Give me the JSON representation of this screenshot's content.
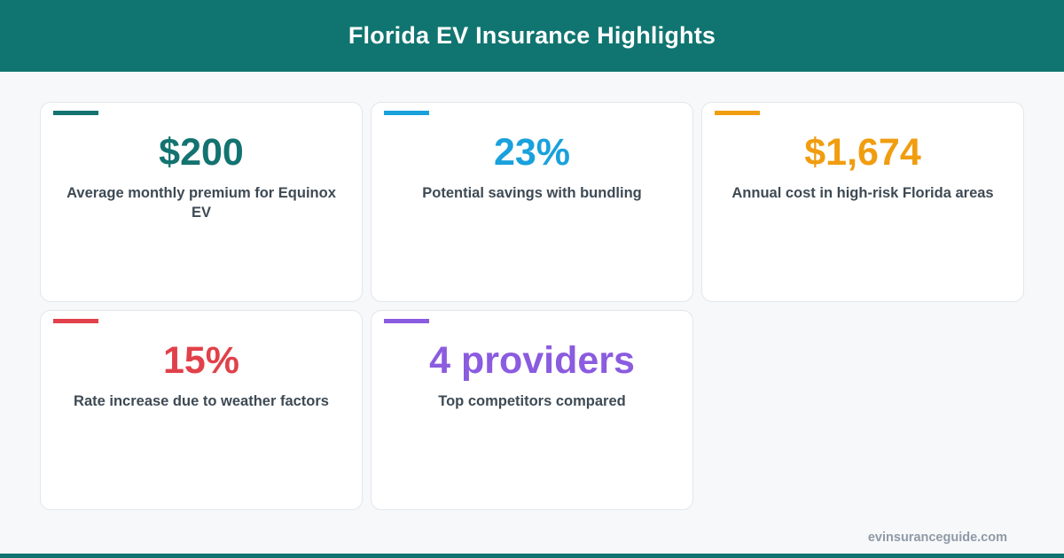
{
  "header": {
    "title": "Florida EV Insurance Highlights"
  },
  "cards": [
    {
      "value": "$200",
      "label": "Average monthly premium for Equinox EV",
      "color": "#137370"
    },
    {
      "value": "23%",
      "label": "Potential savings with bundling",
      "color": "#19a1dc"
    },
    {
      "value": "$1,674",
      "label": "Annual cost in high-risk Florida areas",
      "color": "#f09d10"
    },
    {
      "value": "15%",
      "label": "Rate increase due to weather factors",
      "color": "#e1414a"
    },
    {
      "value": "4 providers",
      "label": "Top competitors compared",
      "color": "#8b5be0"
    }
  ],
  "footer": {
    "site": "evinsuranceguide.com"
  }
}
